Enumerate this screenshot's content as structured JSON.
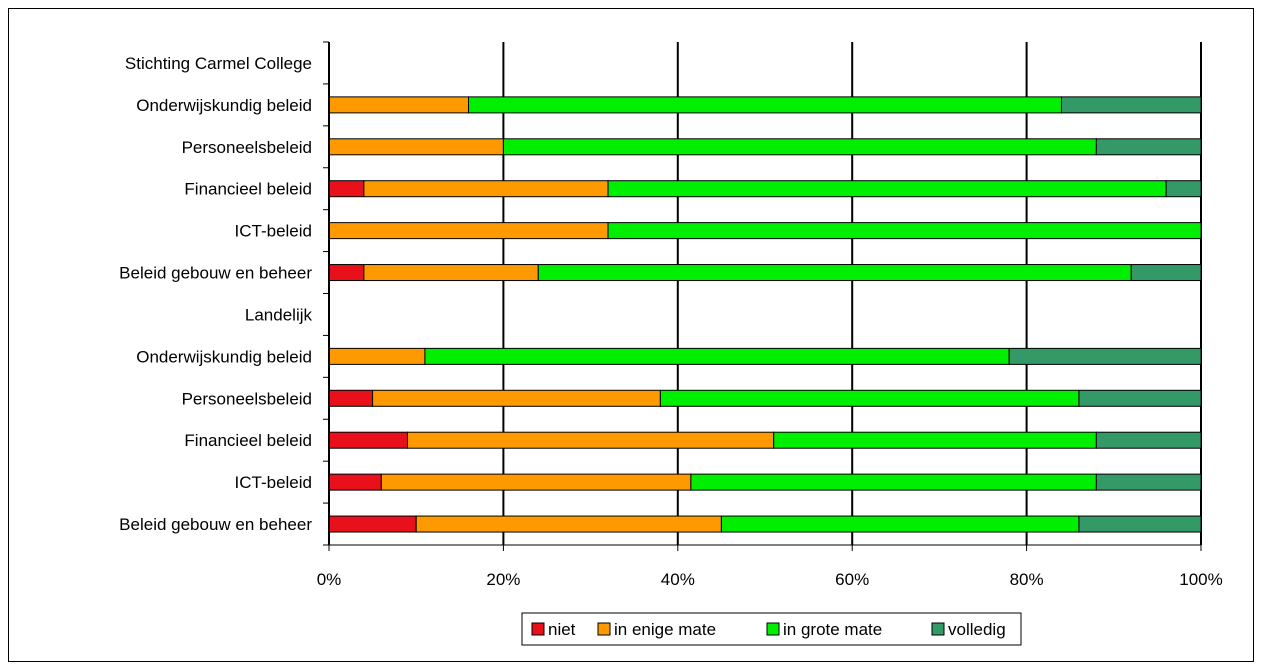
{
  "chart_data": {
    "type": "bar",
    "stacked": true,
    "orientation": "horizontal",
    "percent_scale": true,
    "categories": [
      "Stichting Carmel College",
      "Onderwijskundig beleid",
      "Personeelsbeleid",
      "Financieel beleid",
      "ICT-beleid",
      "Beleid gebouw en beheer",
      "Landelijk",
      "Onderwijskundig beleid",
      "Personeelsbeleid",
      "Financieel beleid",
      "ICT-beleid",
      "Beleid gebouw en beheer"
    ],
    "series": [
      {
        "name": "niet",
        "color": "#e8101b",
        "values": [
          0,
          0,
          0,
          4,
          0,
          4,
          0,
          0,
          5,
          9,
          6,
          10
        ]
      },
      {
        "name": "in enige mate",
        "color": "#ff9900",
        "values": [
          0,
          16,
          20,
          28,
          32,
          20,
          0,
          11,
          33,
          42,
          35.5,
          35
        ]
      },
      {
        "name": "in grote mate",
        "color": "#00ee00",
        "values": [
          0,
          68,
          68,
          64,
          68,
          68,
          0,
          67,
          48,
          37,
          46.5,
          41
        ]
      },
      {
        "name": "volledig",
        "color": "#339966",
        "values": [
          0,
          16,
          12,
          4,
          0,
          8,
          0,
          22,
          14,
          12,
          12,
          14
        ]
      }
    ],
    "xticks": [
      "0%",
      "20%",
      "40%",
      "60%",
      "80%",
      "100%"
    ],
    "xlim": [
      0,
      100
    ],
    "grid": true,
    "legend": "bottom"
  }
}
